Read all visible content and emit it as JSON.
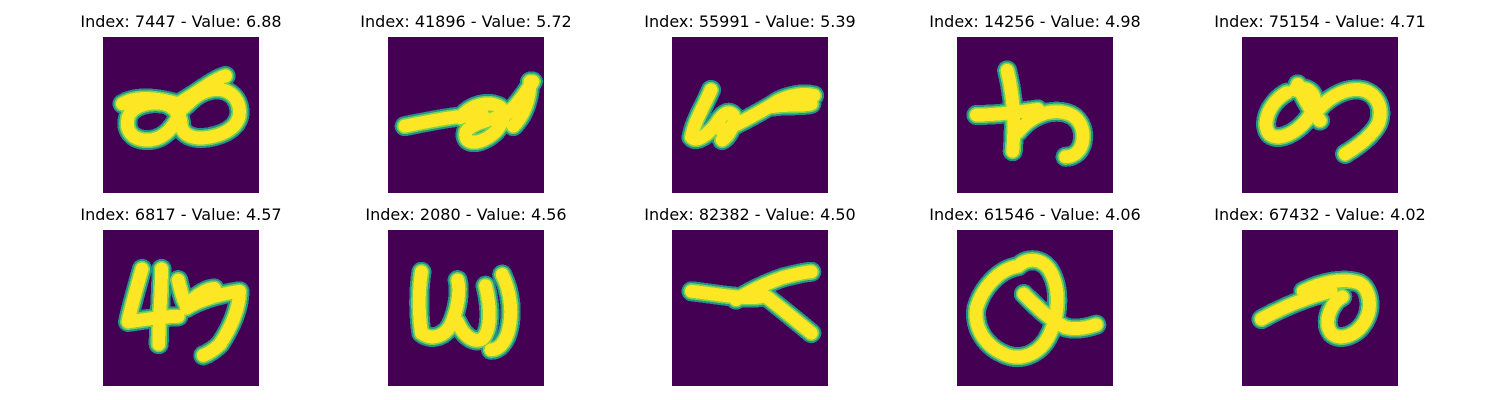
{
  "colors": {
    "background": "#440154",
    "glyph_edge": "#21918c",
    "glyph_mid": "#7ad151",
    "glyph_core": "#fde725"
  },
  "panels": [
    {
      "title": "Index: 7447 - Value: 6.88"
    },
    {
      "title": "Index: 41896 - Value: 5.72"
    },
    {
      "title": "Index: 55991 - Value: 5.39"
    },
    {
      "title": "Index: 14256 - Value: 4.98"
    },
    {
      "title": "Index: 75154 - Value: 4.71"
    },
    {
      "title": "Index: 6817 - Value: 4.57"
    },
    {
      "title": "Index: 2080 - Value: 4.56"
    },
    {
      "title": "Index: 82382 - Value: 4.50"
    },
    {
      "title": "Index: 61546 - Value: 4.06"
    },
    {
      "title": "Index: 67432 - Value: 4.02"
    }
  ]
}
